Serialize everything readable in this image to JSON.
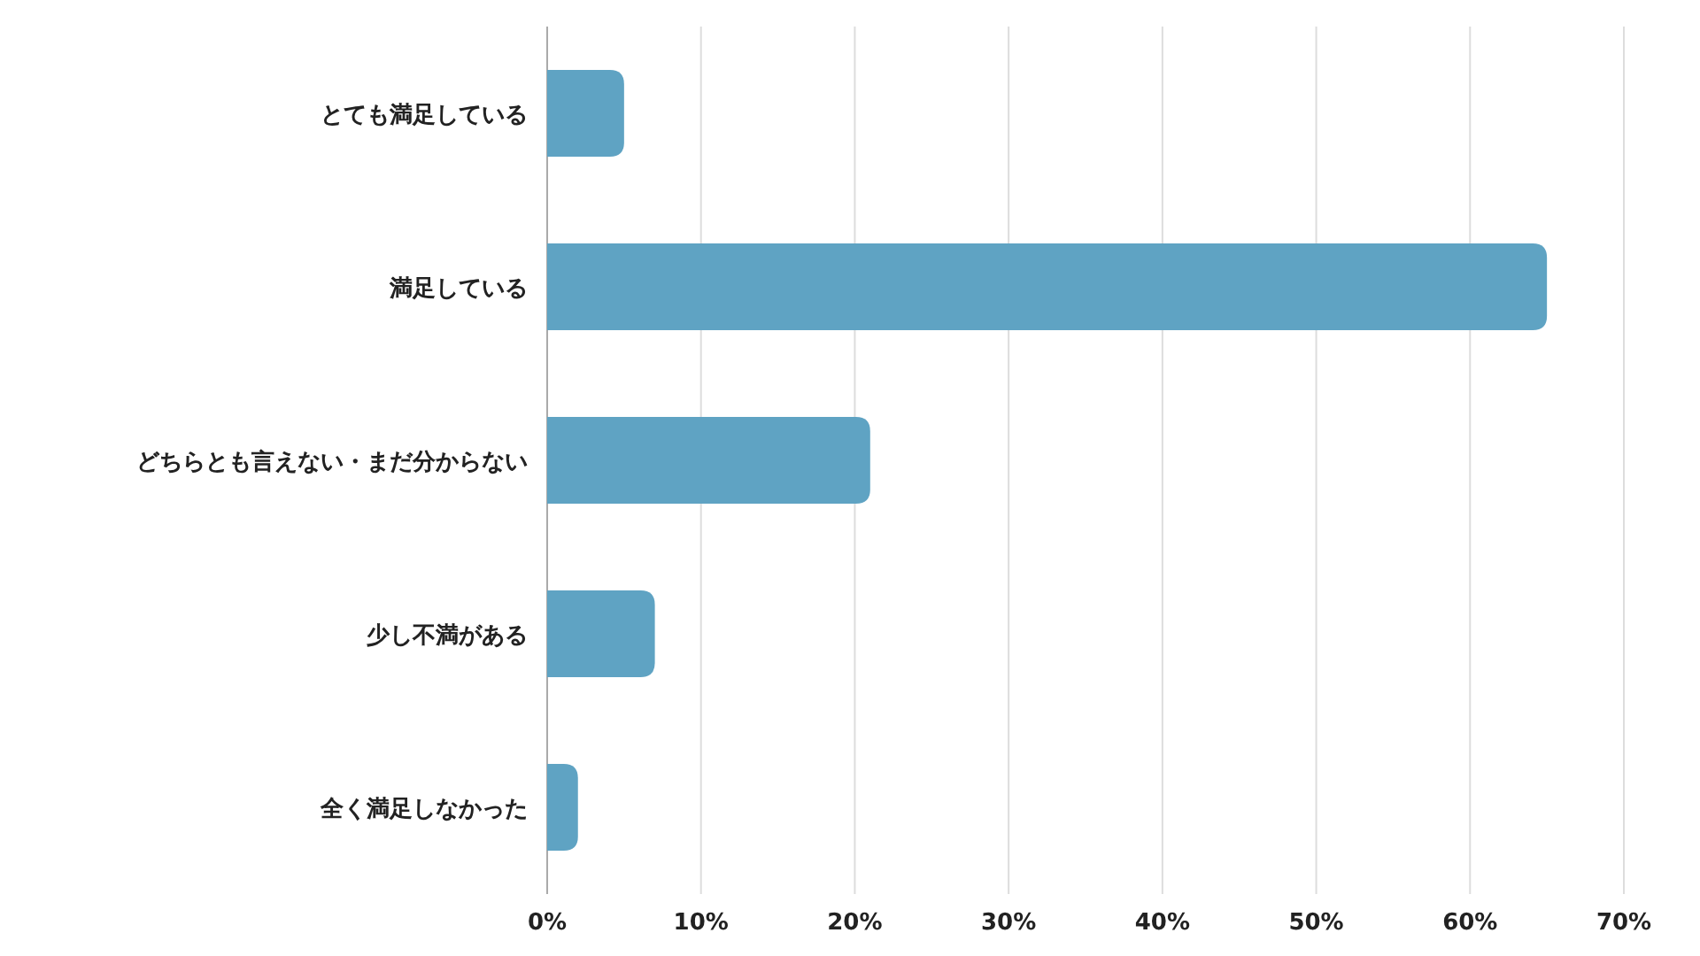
{
  "chart_data": {
    "type": "bar",
    "orientation": "horizontal",
    "categories": [
      "とても満足している",
      "満足している",
      "どちらとも言えない・まだ分からない",
      "少し不満がある",
      "全く満足しなかった"
    ],
    "values": [
      5,
      65,
      21,
      7,
      2
    ],
    "color": "#5fa3c3",
    "xlim": [
      0,
      70
    ],
    "xticks": [
      {
        "value": 0,
        "label": "0%"
      },
      {
        "value": 10,
        "label": "10%"
      },
      {
        "value": 20,
        "label": "20%"
      },
      {
        "value": 30,
        "label": "30%"
      },
      {
        "value": 40,
        "label": "40%"
      },
      {
        "value": 50,
        "label": "50%"
      },
      {
        "value": 60,
        "label": "60%"
      },
      {
        "value": 70,
        "label": "70%"
      }
    ],
    "grid": "x"
  }
}
